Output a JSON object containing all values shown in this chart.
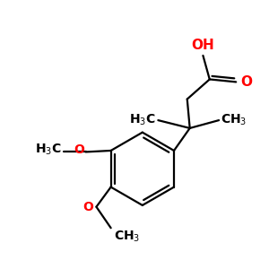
{
  "bg_color": "#ffffff",
  "bond_color": "#000000",
  "oxygen_color": "#ff0000",
  "line_width": 1.6,
  "font_size": 10,
  "figsize": [
    3.0,
    3.0
  ],
  "dpi": 100,
  "xlim": [
    0,
    10
  ],
  "ylim": [
    0,
    10
  ]
}
